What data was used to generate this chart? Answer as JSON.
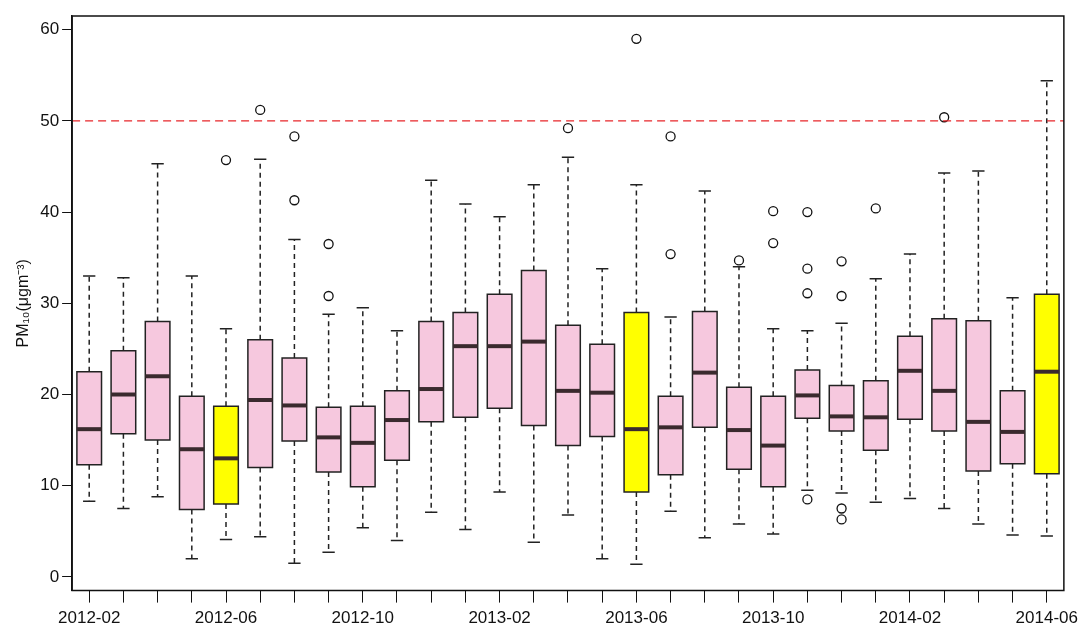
{
  "chart_data": {
    "type": "box",
    "ylabel": "PM₁₀(μgm⁻³)",
    "categories": [
      "2012-02",
      null,
      null,
      null,
      "2012-06",
      null,
      null,
      null,
      "2012-10",
      null,
      null,
      null,
      "2013-02",
      null,
      null,
      null,
      "2013-06",
      null,
      null,
      null,
      "2013-10",
      null,
      null,
      null,
      "2014-02",
      null,
      null,
      null,
      "2014-06"
    ],
    "colors": [
      "#f6c8de",
      "#f6c8de",
      "#f6c8de",
      "#f6c8de",
      "#ffff00",
      "#f6c8de",
      "#f6c8de",
      "#f6c8de",
      "#f6c8de",
      "#f6c8de",
      "#f6c8de",
      "#f6c8de",
      "#f6c8de",
      "#f6c8de",
      "#f6c8de",
      "#f6c8de",
      "#ffff00",
      "#f6c8de",
      "#f6c8de",
      "#f6c8de",
      "#f6c8de",
      "#f6c8de",
      "#f6c8de",
      "#f6c8de",
      "#f6c8de",
      "#f6c8de",
      "#f6c8de",
      "#f6c8de",
      "#ffff00"
    ],
    "boxes": [
      {
        "low": 8.3,
        "q1": 12.3,
        "median": 16.2,
        "q3": 22.5,
        "high": 33
      },
      {
        "low": 7.5,
        "q1": 15.7,
        "median": 20,
        "q3": 24.8,
        "high": 32.8
      },
      {
        "low": 8.8,
        "q1": 15,
        "median": 22,
        "q3": 28,
        "high": 45.3
      },
      {
        "low": 2,
        "q1": 7.4,
        "median": 14,
        "q3": 19.8,
        "high": 33
      },
      {
        "low": 4.1,
        "q1": 8,
        "median": 13,
        "q3": 18.7,
        "high": 27.2,
        "outliers": [
          45.7
        ]
      },
      {
        "low": 4.4,
        "q1": 12,
        "median": 19.4,
        "q3": 26,
        "high": 45.8,
        "outliers": [
          51.2
        ]
      },
      {
        "low": 1.5,
        "q1": 14.9,
        "median": 18.8,
        "q3": 24,
        "high": 37,
        "outliers": [
          48.3,
          41.3
        ]
      },
      {
        "low": 2.7,
        "q1": 11.5,
        "median": 15.3,
        "q3": 18.6,
        "high": 28.8,
        "outliers": [
          36.5,
          30.8
        ]
      },
      {
        "low": 5.4,
        "q1": 9.9,
        "median": 14.7,
        "q3": 18.7,
        "high": 29.5
      },
      {
        "low": 4,
        "q1": 12.8,
        "median": 17.2,
        "q3": 20.4,
        "high": 27
      },
      {
        "low": 7.1,
        "q1": 17,
        "median": 20.6,
        "q3": 28,
        "high": 43.5
      },
      {
        "low": 5.2,
        "q1": 17.5,
        "median": 25.3,
        "q3": 29,
        "high": 40.9
      },
      {
        "low": 9.3,
        "q1": 18.5,
        "median": 25.3,
        "q3": 31,
        "high": 39.5
      },
      {
        "low": 3.8,
        "q1": 16.6,
        "median": 25.8,
        "q3": 33.6,
        "high": 43
      },
      {
        "low": 6.8,
        "q1": 14.4,
        "median": 20.4,
        "q3": 27.6,
        "high": 46,
        "outliers": [
          49.2
        ]
      },
      {
        "low": 2,
        "q1": 15.4,
        "median": 20.2,
        "q3": 25.5,
        "high": 33.8
      },
      {
        "low": 1.4,
        "q1": 9.3,
        "median": 16.2,
        "q3": 29,
        "high": 43,
        "outliers": [
          59
        ]
      },
      {
        "low": 7.2,
        "q1": 11.2,
        "median": 16.4,
        "q3": 19.8,
        "high": 28.5,
        "outliers": [
          48.3,
          35.4
        ]
      },
      {
        "low": 4.3,
        "q1": 16.4,
        "median": 22.4,
        "q3": 29.1,
        "high": 42.3
      },
      {
        "low": 5.8,
        "q1": 11.8,
        "median": 16.1,
        "q3": 20.8,
        "high": 34,
        "outliers": [
          34.7
        ]
      },
      {
        "low": 4.7,
        "q1": 9.9,
        "median": 14.4,
        "q3": 19.8,
        "high": 27.2,
        "outliers": [
          40.1,
          36.6
        ]
      },
      {
        "low": 9.5,
        "q1": 17.4,
        "median": 19.9,
        "q3": 22.7,
        "high": 27,
        "outliers": [
          40,
          33.8,
          31.1,
          8.5
        ]
      },
      {
        "low": 9.2,
        "q1": 16,
        "median": 17.6,
        "q3": 21,
        "high": 27.8,
        "outliers": [
          34.6,
          30.8,
          7.5,
          6.3
        ]
      },
      {
        "low": 8.2,
        "q1": 13.9,
        "median": 17.5,
        "q3": 21.5,
        "high": 32.7,
        "outliers": [
          40.4
        ]
      },
      {
        "low": 8.6,
        "q1": 17.3,
        "median": 22.6,
        "q3": 26.4,
        "high": 35.4
      },
      {
        "low": 7.5,
        "q1": 16,
        "median": 20.4,
        "q3": 28.3,
        "high": 44.3,
        "outliers": [
          50.4
        ]
      },
      {
        "low": 5.8,
        "q1": 11.6,
        "median": 17,
        "q3": 28.1,
        "high": 44.5
      },
      {
        "low": 4.6,
        "q1": 12.4,
        "median": 15.9,
        "q3": 20.4,
        "high": 30.6
      },
      {
        "low": 4.5,
        "q1": 11.3,
        "median": 22.5,
        "q3": 31,
        "high": 54.4
      }
    ],
    "ylim": [
      -1.5,
      61.5
    ],
    "yticks": [
      0,
      10,
      20,
      30,
      40,
      50,
      60
    ],
    "ref_lines": [
      {
        "axis": "y",
        "value": 50,
        "color": "#e8262a",
        "line_style": "dashed"
      }
    ],
    "grid": false,
    "legend": false
  }
}
